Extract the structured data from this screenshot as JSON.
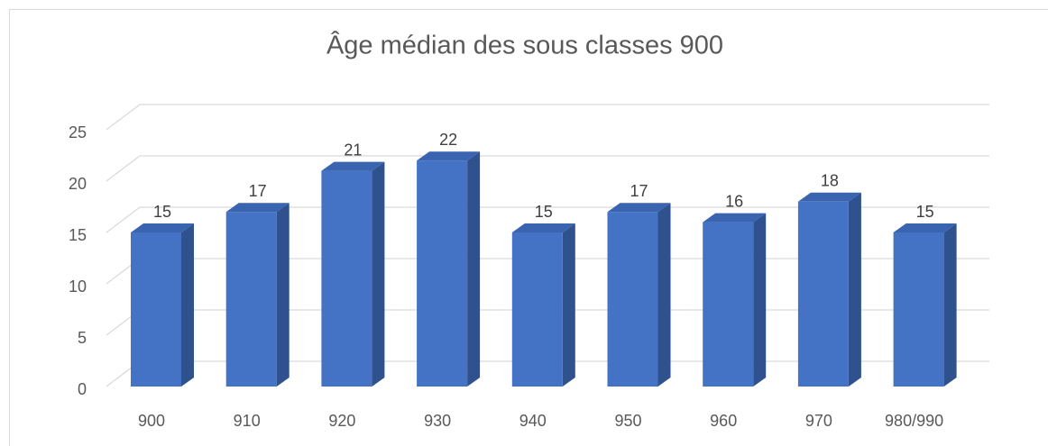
{
  "chart_data": {
    "type": "bar3d",
    "title": "Âge médian des sous classes 900",
    "categories": [
      "900",
      "910",
      "920",
      "930",
      "940",
      "950",
      "960",
      "970",
      "980/990"
    ],
    "values": [
      15,
      17,
      21,
      22,
      15,
      17,
      16,
      18,
      15
    ],
    "color": "#4472c4",
    "side_color": "#2f528f",
    "top_color": "#3a63b0",
    "ylim": [
      0,
      25
    ],
    "yticks": [
      0,
      5,
      10,
      15,
      20,
      25
    ],
    "grid": true
  }
}
